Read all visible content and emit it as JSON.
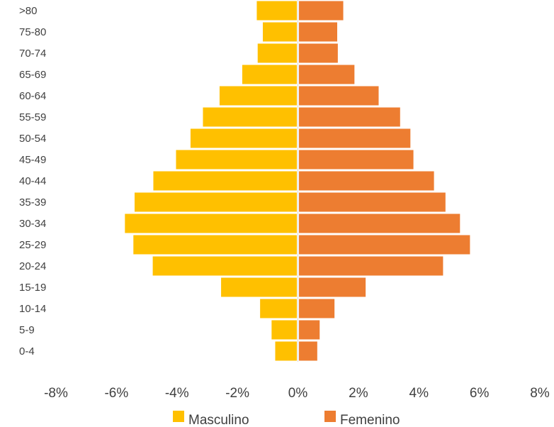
{
  "chart_data": {
    "type": "bar",
    "orientation": "horizontal",
    "stacked": "diverging",
    "categories": [
      "0-4",
      "5-9",
      "10-14",
      "15-19",
      "20-24",
      "25-29",
      "30-34",
      "35-39",
      "40-44",
      "45-49",
      "50-54",
      "55-59",
      "60-64",
      "65-69",
      "70-74",
      "75-80",
      ">80"
    ],
    "series": [
      {
        "name": "Masculino",
        "color": "#FFC000",
        "values": [
          -0.75,
          -0.87,
          -1.25,
          -2.54,
          -4.8,
          -5.44,
          -5.72,
          -5.4,
          -4.78,
          -4.03,
          -3.55,
          -3.14,
          -2.59,
          -1.84,
          -1.33,
          -1.16,
          -1.36
        ]
      },
      {
        "name": "Femenino",
        "color": "#ED7D31",
        "values": [
          0.64,
          0.72,
          1.21,
          2.24,
          4.8,
          5.69,
          5.36,
          4.88,
          4.5,
          3.82,
          3.72,
          3.38,
          2.67,
          1.87,
          1.32,
          1.3,
          1.5
        ]
      }
    ],
    "xticks": [
      "-8%",
      "-6%",
      "-4%",
      "-2%",
      "0%",
      "2%",
      "4%",
      "6%",
      "8%"
    ],
    "xlim": [
      -8,
      8
    ],
    "legend_position": "bottom"
  }
}
